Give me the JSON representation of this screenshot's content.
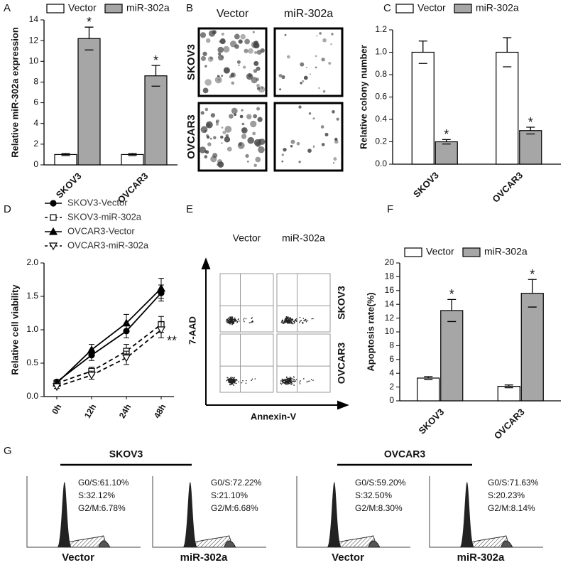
{
  "chart_data": [
    {
      "type": "bar",
      "label": "A",
      "y_label": "Relative miR-302a expression",
      "categories": [
        "SKOV3",
        "OVCAR3"
      ],
      "series": [
        {
          "name": "Vector",
          "color": "#ffffff",
          "values": [
            1,
            1
          ],
          "errors": [
            0.1,
            0.1
          ]
        },
        {
          "name": "miR-302a",
          "color": "#a6a6a6",
          "values": [
            12.2,
            8.6
          ],
          "errors": [
            1.1,
            1.0
          ],
          "annotations": [
            "*",
            "*"
          ]
        }
      ],
      "ylim": [
        0,
        14
      ],
      "yticks": [
        0,
        2,
        4,
        6,
        8,
        10,
        12,
        14
      ]
    },
    {
      "type": "bar",
      "label": "C",
      "y_label": "Relative colony number",
      "categories": [
        "SKOV3",
        "OVCAR3"
      ],
      "series": [
        {
          "name": "Vector",
          "color": "#ffffff",
          "values": [
            1,
            1
          ],
          "errors": [
            0.1,
            0.13
          ]
        },
        {
          "name": "miR-302a",
          "color": "#a6a6a6",
          "values": [
            0.2,
            0.3
          ],
          "errors": [
            0.02,
            0.03
          ],
          "annotations": [
            "*",
            "*"
          ]
        }
      ],
      "ylim": [
        0,
        1.2
      ],
      "yticks": [
        {
          "value": 0,
          "label": "0.0"
        },
        0.2,
        0.4,
        0.6,
        0.8,
        {
          "value": 1,
          "label": "1.0"
        },
        1.2
      ]
    },
    {
      "type": "line",
      "label": "D",
      "y_label": "Relative cell viability",
      "categories": [
        "0h",
        "12h",
        "24h",
        "48h"
      ],
      "series": [
        {
          "name": "SKOV3-Vector",
          "color": "#000000",
          "marker": "circle",
          "filled": true,
          "dashed": false,
          "values": [
            0.22,
            0.62,
            0.98,
            1.55
          ],
          "errors": [
            0.03,
            0.08,
            0.1,
            0.12
          ]
        },
        {
          "name": "SKOV3-miR-302a",
          "color": "#000000",
          "marker": "square",
          "filled": false,
          "dashed": true,
          "values": [
            0.2,
            0.38,
            0.68,
            1.08
          ],
          "errors": [
            0.03,
            0.06,
            0.1,
            0.12
          ]
        },
        {
          "name": "OVCAR3-Vector",
          "color": "#000000",
          "marker": "triangle",
          "filled": true,
          "dashed": false,
          "values": [
            0.2,
            0.7,
            1.1,
            1.62
          ],
          "errors": [
            0.03,
            0.08,
            0.13,
            0.15
          ]
        },
        {
          "name": "OVCAR3-miR-302a",
          "color": "#000000",
          "marker": "triangle-down",
          "filled": false,
          "dashed": true,
          "values": [
            0.15,
            0.32,
            0.58,
            1.0
          ],
          "errors": [
            0.03,
            0.06,
            0.1,
            0.12
          ]
        }
      ],
      "annotation": "**",
      "ylim": [
        0,
        2
      ],
      "yticks": [
        {
          "value": 0,
          "label": "0.0"
        },
        0.5,
        {
          "value": 1,
          "label": "1.0"
        },
        1.5,
        {
          "value": 2,
          "label": "2.0"
        }
      ]
    },
    {
      "type": "bar",
      "label": "F",
      "y_label": "Apoptosis rate(%)",
      "categories": [
        "SKOV3",
        "OVCAR3"
      ],
      "series": [
        {
          "name": "Vector",
          "color": "#ffffff",
          "values": [
            3.3,
            2.1
          ],
          "errors": [
            0.2,
            0.2
          ]
        },
        {
          "name": "miR-302a",
          "color": "#a6a6a6",
          "values": [
            13.1,
            15.6
          ],
          "errors": [
            1.6,
            2.0
          ],
          "annotations": [
            "*",
            "*"
          ]
        }
      ],
      "ylim": [
        0,
        20
      ],
      "yticks": [
        0,
        2,
        4,
        6,
        8,
        10,
        12,
        14,
        16,
        18,
        20
      ]
    }
  ],
  "panel_b": {
    "label": "B",
    "columns": [
      "Vector",
      "miR-302a"
    ],
    "rows": [
      "SKOV3",
      "OVCAR3"
    ]
  },
  "panel_e": {
    "label": "E",
    "columns": [
      "Vector",
      "miR-302a"
    ],
    "rows": [
      "SKOV3",
      "OVCAR3"
    ],
    "x_label": "Annexin-V",
    "y_label": "7-AAD"
  },
  "panel_g": {
    "label": "G",
    "groups": [
      {
        "name": "SKOV3",
        "samples": [
          {
            "name": "Vector",
            "stats": [
              "G0/S:61.10%",
              "S:32.12%",
              "G2/M:6.78%"
            ]
          },
          {
            "name": "miR-302a",
            "stats": [
              "G0/S:72.22%",
              "S:21.10%",
              "G2/M:6.68%"
            ]
          }
        ]
      },
      {
        "name": "OVCAR3",
        "samples": [
          {
            "name": "Vector",
            "stats": [
              "G0/S:59.20%",
              "S:32.50%",
              "G2/M:8.30%"
            ]
          },
          {
            "name": "miR-302a",
            "stats": [
              "G0/S:71.63%",
              "S:20.23%",
              "G2/M:8.14%"
            ]
          }
        ]
      }
    ]
  }
}
